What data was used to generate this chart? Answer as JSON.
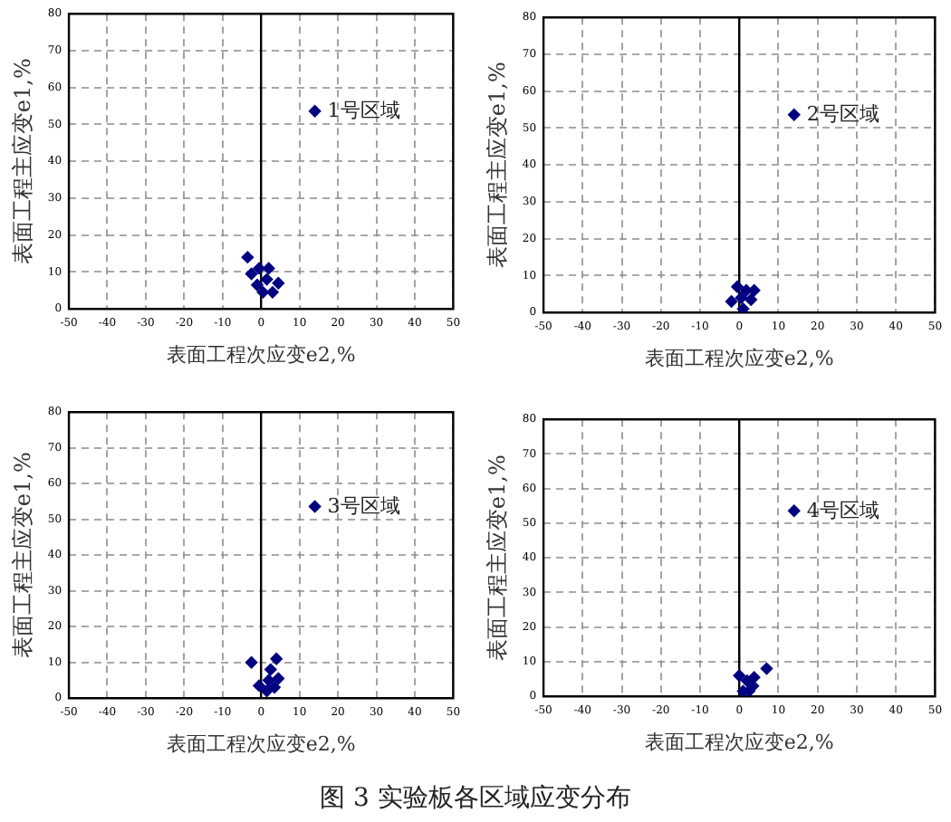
{
  "chart_data": [
    {
      "type": "scatter",
      "xlabel": "表面工程次应变e2,%",
      "ylabel": "表面工程主应变e1,%",
      "series": [
        {
          "name": "1号区域",
          "color": "#000080",
          "x": [
            -3.5,
            -2.5,
            -0.5,
            2,
            -1,
            1.5,
            4.5,
            0.5,
            3
          ],
          "values": [
            14,
            9.5,
            11,
            11,
            6.5,
            8,
            7,
            4.5,
            4.5
          ]
        }
      ],
      "xlim": [
        -50,
        50
      ],
      "ylim": [
        0,
        80
      ],
      "xticks": [
        -50,
        -40,
        -30,
        -20,
        -10,
        0,
        10,
        20,
        30,
        40,
        50
      ],
      "yticks": [
        0,
        10,
        20,
        30,
        40,
        50,
        60,
        70,
        80
      ],
      "grid": true,
      "legend": "right",
      "marker": "diamond",
      "ref_lines": [
        {
          "axis": "x",
          "value": 0,
          "color": "#000000"
        }
      ]
    },
    {
      "type": "scatter",
      "xlabel": "表面工程次应变e2,%",
      "ylabel": "表面工程主应变e1,%",
      "series": [
        {
          "name": "2号区域",
          "color": "#000080",
          "x": [
            -0.5,
            -2,
            0.5,
            1,
            3,
            1.8,
            3.8
          ],
          "values": [
            7,
            3,
            4,
            1,
            3.5,
            6,
            6
          ]
        }
      ],
      "xlim": [
        -50,
        50
      ],
      "ylim": [
        0,
        80
      ],
      "xticks": [
        -50,
        -40,
        -30,
        -20,
        -10,
        0,
        10,
        20,
        30,
        40,
        50
      ],
      "yticks": [
        0,
        10,
        20,
        30,
        40,
        50,
        60,
        70,
        80
      ],
      "grid": true,
      "legend": "right",
      "marker": "diamond",
      "ref_lines": [
        {
          "axis": "x",
          "value": 0,
          "color": "#000000"
        }
      ]
    },
    {
      "type": "scatter",
      "xlabel": "表面工程次应变e2,%",
      "ylabel": "表面工程主应变e1,%",
      "series": [
        {
          "name": "3号区域",
          "color": "#000080",
          "x": [
            -2.5,
            4,
            2.5,
            4.5,
            2,
            -0.5,
            1.5,
            3.5
          ],
          "values": [
            10,
            11,
            8,
            5.5,
            5,
            3.5,
            2,
            3
          ]
        }
      ],
      "xlim": [
        -50,
        50
      ],
      "ylim": [
        0,
        80
      ],
      "xticks": [
        -50,
        -40,
        -30,
        -20,
        -10,
        0,
        10,
        20,
        30,
        40,
        50
      ],
      "yticks": [
        0,
        10,
        20,
        30,
        40,
        50,
        60,
        70,
        80
      ],
      "grid": true,
      "legend": "right",
      "marker": "diamond",
      "ref_lines": [
        {
          "axis": "x",
          "value": 0,
          "color": "#000000"
        }
      ]
    },
    {
      "type": "scatter",
      "xlabel": "表面工程次应变e2,%",
      "ylabel": "表面工程主应变e1,%",
      "series": [
        {
          "name": "4号区域",
          "color": "#000080",
          "x": [
            0,
            7,
            1,
            2,
            3.5,
            3.8,
            2.5
          ],
          "values": [
            6,
            8,
            1.5,
            4.5,
            3,
            5.5,
            1.5
          ]
        }
      ],
      "xlim": [
        -50,
        50
      ],
      "ylim": [
        0,
        80
      ],
      "xticks": [
        -50,
        -40,
        -30,
        -20,
        -10,
        0,
        10,
        20,
        30,
        40,
        50
      ],
      "yticks": [
        0,
        10,
        20,
        30,
        40,
        50,
        60,
        70,
        80
      ],
      "grid": true,
      "legend": "right",
      "marker": "diamond",
      "ref_lines": [
        {
          "axis": "x",
          "value": 0,
          "color": "#000000"
        }
      ],
      "annotations": [
        "图 3 实验板各区域应变分布"
      ]
    }
  ]
}
